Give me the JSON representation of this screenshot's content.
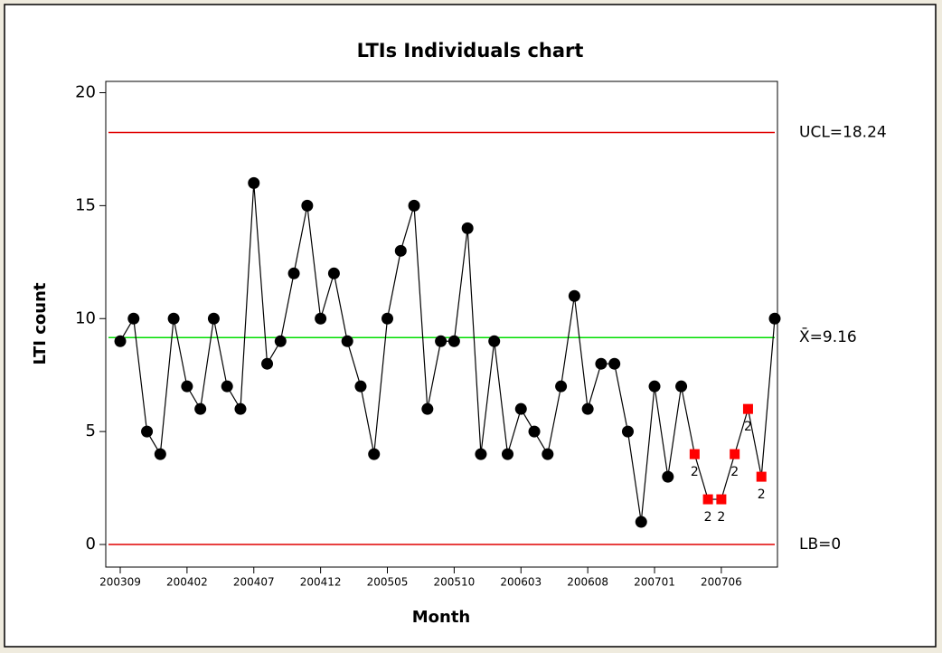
{
  "chart_data": {
    "type": "line",
    "title": "LTIs Individuals chart",
    "x_label": "Month",
    "y_label": "LTI count",
    "categories": [
      "200309",
      null,
      null,
      null,
      null,
      "200402",
      null,
      null,
      null,
      null,
      "200407",
      null,
      null,
      null,
      null,
      "200412",
      null,
      null,
      null,
      null,
      "200505",
      null,
      null,
      null,
      null,
      "200510",
      null,
      null,
      null,
      null,
      "200603",
      null,
      null,
      null,
      null,
      "200608",
      null,
      null,
      null,
      null,
      "200701",
      null,
      null,
      null,
      null,
      "200706",
      null,
      null,
      null,
      null
    ],
    "series": [
      {
        "name": "LTI count",
        "color": "#000000",
        "alarm_color": "#ff0000",
        "values": [
          9,
          10,
          5,
          4,
          10,
          7,
          6,
          10,
          7,
          6,
          16,
          8,
          9,
          12,
          15,
          10,
          12,
          9,
          7,
          4,
          10,
          13,
          15,
          6,
          9,
          9,
          14,
          4,
          9,
          4,
          6,
          5,
          4,
          7,
          11,
          6,
          8,
          8,
          5,
          1,
          7,
          3,
          7,
          4,
          2,
          2,
          4,
          6,
          3,
          10
        ],
        "test_labels": [
          null,
          null,
          null,
          null,
          null,
          null,
          null,
          null,
          null,
          null,
          null,
          null,
          null,
          null,
          null,
          null,
          null,
          null,
          null,
          null,
          null,
          null,
          null,
          null,
          null,
          null,
          null,
          null,
          null,
          null,
          null,
          null,
          null,
          null,
          null,
          null,
          null,
          null,
          null,
          null,
          null,
          null,
          null,
          "2",
          "2",
          "2",
          "2",
          "2",
          "2",
          null
        ]
      }
    ],
    "control_lines": [
      {
        "label": "UCL=18.24",
        "value": 18.24,
        "color": "#e00000"
      },
      {
        "label": "X̄=9.16",
        "value": 9.16,
        "color": "#00dd00"
      },
      {
        "label": "LB=0",
        "value": 0,
        "color": "#e00000"
      }
    ],
    "ylim": [
      -1,
      20.5
    ],
    "yticks": [
      0,
      5,
      10,
      15,
      20
    ]
  }
}
